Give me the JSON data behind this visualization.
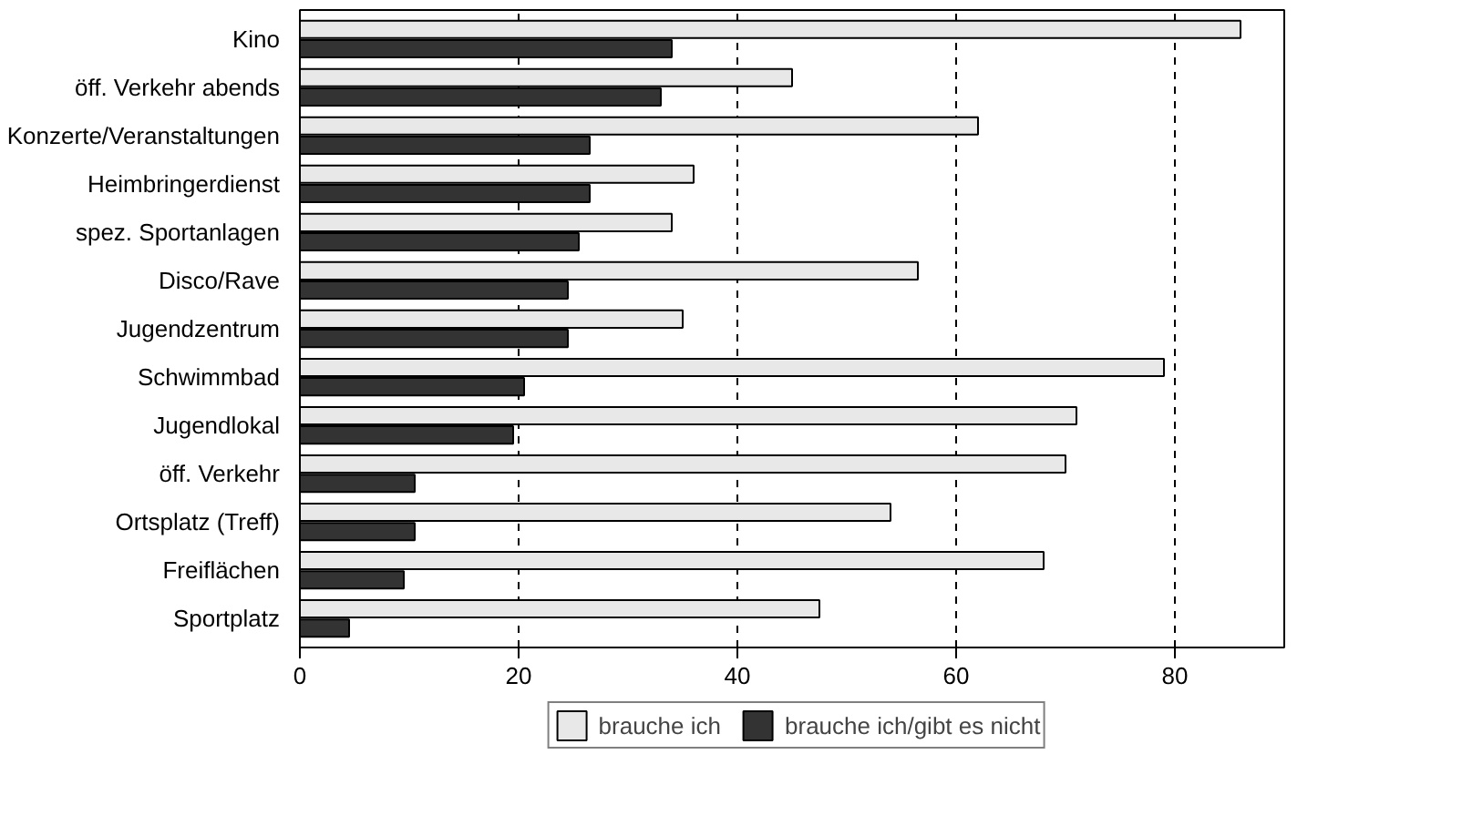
{
  "chart_data": {
    "type": "bar",
    "orientation": "horizontal",
    "categories": [
      "Kino",
      "öff. Verkehr abends",
      "Konzerte/Veranstaltungen",
      "Heimbringerdienst",
      "spez. Sportanlagen",
      "Disco/Rave",
      "Jugendzentrum",
      "Schwimmbad",
      "Jugendlokal",
      "öff. Verkehr",
      "Ortsplatz (Treff)",
      "Freiflächen",
      "Sportplatz"
    ],
    "series": [
      {
        "name": "brauche ich",
        "color": "#e8e8e8",
        "values": [
          86,
          45,
          62,
          36,
          34,
          56.5,
          35,
          79,
          71,
          70,
          54,
          68,
          47.5
        ]
      },
      {
        "name": "brauche ich/gibt es nicht",
        "color": "#333333",
        "values": [
          34,
          33,
          26.5,
          26.5,
          25.5,
          24.5,
          24.5,
          20.5,
          19.5,
          10.5,
          10.5,
          9.5,
          4.5
        ]
      }
    ],
    "xlim": [
      0,
      90
    ],
    "xticks": [
      0,
      20,
      40,
      60,
      80
    ],
    "grid": "x",
    "legend": "bottom"
  }
}
